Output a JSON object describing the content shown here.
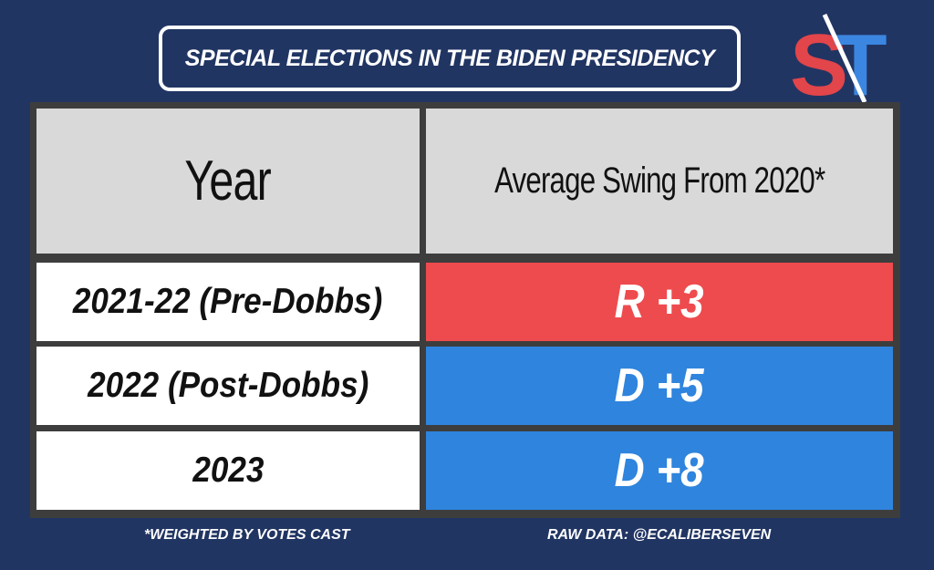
{
  "title": "SPECIAL ELECTIONS IN THE BIDEN PRESIDENCY",
  "logo": {
    "letters": "ST",
    "icon": "split-ticket-logo",
    "color_s": "#e2454a",
    "color_t": "#3b86e0"
  },
  "colors": {
    "background": "#213563",
    "header_bg": "#d9d9d9",
    "republican": "#ee4b4e",
    "democrat": "#2f84dd"
  },
  "chart_data": {
    "type": "table",
    "title": "SPECIAL ELECTIONS IN THE BIDEN PRESIDENCY",
    "columns": [
      "Year",
      "Average Swing From 2020*"
    ],
    "rows": [
      {
        "year": "2021-22 (Pre-Dobbs)",
        "swing": "R +3",
        "party": "R",
        "value": 3
      },
      {
        "year": "2022 (Post-Dobbs)",
        "swing": "D +5",
        "party": "D",
        "value": 5
      },
      {
        "year": "2023",
        "swing": "D +8",
        "party": "D",
        "value": 8
      }
    ]
  },
  "footer": {
    "note": "*WEIGHTED BY VOTES CAST",
    "source": "RAW DATA: @ECALIBERSEVEN"
  }
}
